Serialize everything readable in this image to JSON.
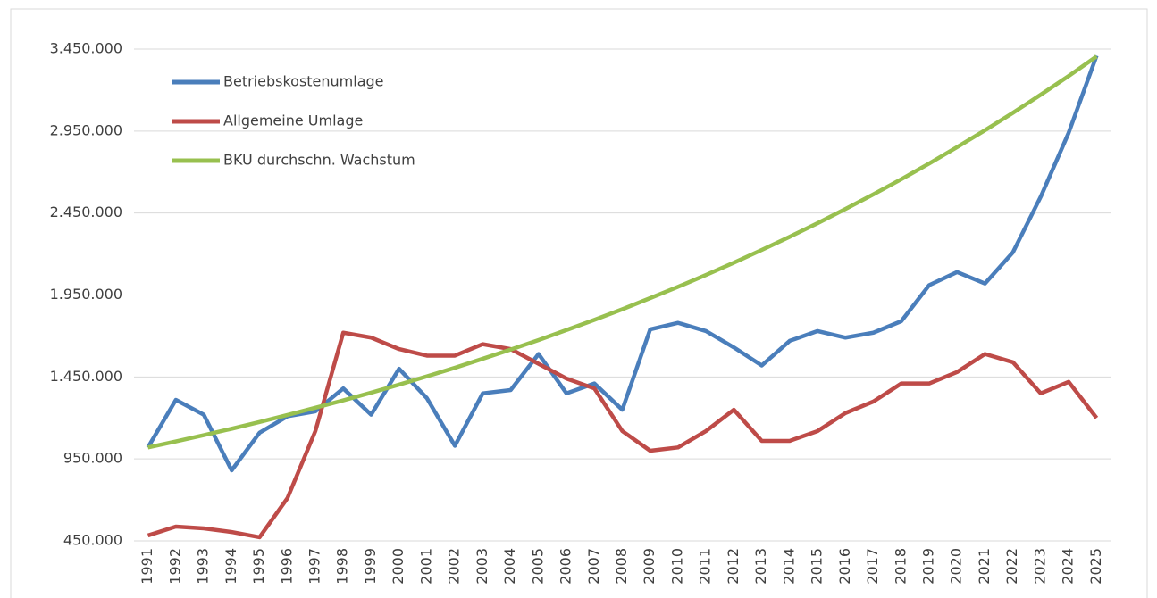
{
  "chart_data": {
    "type": "line",
    "categories": [
      "1991",
      "1992",
      "1993",
      "1994",
      "1995",
      "1996",
      "1997",
      "1998",
      "1999",
      "2000",
      "2001",
      "2002",
      "2003",
      "2004",
      "2005",
      "2006",
      "2007",
      "2008",
      "2009",
      "2010",
      "2011",
      "2012",
      "2013",
      "2014",
      "2015",
      "2016",
      "2017",
      "2018",
      "2019",
      "2020",
      "2021",
      "2022",
      "2023",
      "2024",
      "2025"
    ],
    "series": [
      {
        "name": "Betriebskostenumlage",
        "color": "#4a7ebb",
        "values": [
          1020000,
          1310000,
          1220000,
          880000,
          1110000,
          1210000,
          1240000,
          1380000,
          1220000,
          1500000,
          1320000,
          1030000,
          1350000,
          1370000,
          1590000,
          1350000,
          1410000,
          1250000,
          1740000,
          1780000,
          1730000,
          1630000,
          1520000,
          1670000,
          1730000,
          1690000,
          1720000,
          1790000,
          2010000,
          2090000,
          2020000,
          2210000,
          2550000,
          2940000,
          3410000
        ]
      },
      {
        "name": "Allgemeine Umlage",
        "color": "#be4b48",
        "values": [
          483000,
          537000,
          526000,
          504000,
          472000,
          711000,
          1120000,
          1720000,
          1690000,
          1620000,
          1580000,
          1580000,
          1650000,
          1620000,
          1530000,
          1440000,
          1380000,
          1120000,
          1000000,
          1020000,
          1120000,
          1250000,
          1060000,
          1060000,
          1120000,
          1230000,
          1300000,
          1410000,
          1410000,
          1480000,
          1590000,
          1540000,
          1350000,
          1420000,
          1200000
        ]
      },
      {
        "name": "BKU durchschn. Wachstum",
        "color": "#98c04f",
        "values": [
          1020000,
          1057000,
          1095000,
          1134000,
          1175000,
          1218000,
          1262000,
          1307000,
          1354000,
          1403000,
          1454000,
          1506000,
          1561000,
          1617000,
          1675000,
          1736000,
          1798000,
          1863000,
          1931000,
          2000000,
          2072000,
          2147000,
          2225000,
          2305000,
          2388000,
          2475000,
          2564000,
          2656000,
          2752000,
          2852000,
          2955000,
          3061000,
          3172000,
          3286000,
          3405000
        ]
      }
    ],
    "ylim": [
      450000,
      3450000
    ],
    "yticks": [
      {
        "value": 450000,
        "label": "450.000"
      },
      {
        "value": 950000,
        "label": "950.000"
      },
      {
        "value": 1450000,
        "label": "1.450.000"
      },
      {
        "value": 1950000,
        "label": "1.950.000"
      },
      {
        "value": 2450000,
        "label": "2.450.000"
      },
      {
        "value": 2950000,
        "label": "2.950.000"
      },
      {
        "value": 3450000,
        "label": "3.450.000"
      }
    ],
    "grid": true,
    "legend": "top-left"
  }
}
